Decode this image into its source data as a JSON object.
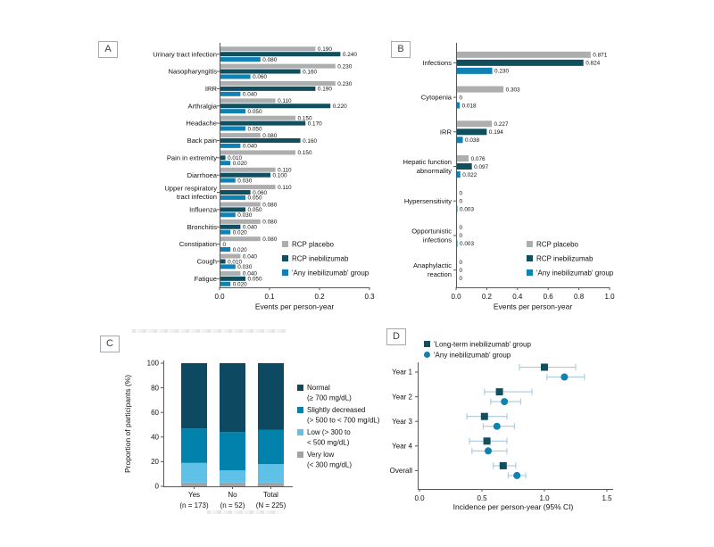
{
  "figure": {
    "panel_labels": [
      "A",
      "B",
      "C",
      "D"
    ],
    "background": "#ffffff",
    "axis_color": "#58595b"
  },
  "chart_data": [
    {
      "panel": "A",
      "type": "bar",
      "orientation": "horizontal",
      "xlabel": "Events per person-year",
      "xlim": [
        0,
        0.3
      ],
      "xticks": [
        0,
        0.1,
        0.2,
        0.3
      ],
      "value_label_format": "3 decimals, zero shown as 0",
      "legend_position": "lower-right",
      "categories": [
        "Urinary tract infection",
        "Nasopharyngitis",
        "IRR",
        "Arthralgia",
        "Headache",
        "Back pain",
        "Pain in extremity",
        "Diarrhoea",
        [
          "Upper respiratory",
          "tract infection"
        ],
        "Influenza",
        "Bronchitis",
        "Constipation",
        "Cough",
        "Fatigue"
      ],
      "series": [
        {
          "name": "RCP placebo",
          "color": "#adaeb0",
          "values": [
            0.19,
            0.23,
            0.23,
            0.11,
            0.15,
            0.08,
            0.15,
            0.11,
            0.11,
            0.08,
            0.08,
            0.08,
            0.04,
            0.04
          ]
        },
        {
          "name": "RCP inebilizumab",
          "color": "#114f5f",
          "values": [
            0.24,
            0.16,
            0.19,
            0.22,
            0.17,
            0.16,
            0.01,
            0.1,
            0.06,
            0.05,
            0.04,
            0,
            0.01,
            0.05
          ]
        },
        {
          "name": "'Any inebilizumab' group",
          "color": "#0f81b2",
          "values": [
            0.08,
            0.06,
            0.04,
            0.05,
            0.05,
            0.04,
            0.02,
            0.03,
            0.05,
            0.03,
            0.02,
            0.02,
            0.03,
            0.02
          ]
        }
      ]
    },
    {
      "panel": "B",
      "type": "bar",
      "orientation": "horizontal",
      "xlabel": "Events per person-year",
      "xlim": [
        0,
        1.0
      ],
      "xticks": [
        0,
        0.2,
        0.4,
        0.6,
        0.8,
        1.0
      ],
      "value_label_format": "3 decimals, zero shown as 0",
      "legend_position": "lower-right",
      "categories": [
        "Infections",
        "Cytopenia",
        "IRR",
        [
          "Hepatic function",
          "abnormality"
        ],
        "Hypersensitivity",
        [
          "Opportunistic",
          "infections"
        ],
        [
          "Anaphylactic",
          "reaction"
        ]
      ],
      "series": [
        {
          "name": "RCP placebo",
          "color": "#adaeb0",
          "values": [
            0.871,
            0.303,
            0.227,
            0.076,
            0,
            0,
            0
          ]
        },
        {
          "name": "RCP inebilizumab",
          "color": "#114f5f",
          "values": [
            0.824,
            0,
            0.194,
            0.097,
            0,
            0,
            0
          ]
        },
        {
          "name": "'Any inebilizumab' group",
          "color": "#0f81b2",
          "values": [
            0.23,
            0.018,
            0.038,
            0.022,
            0.003,
            0.003,
            0
          ]
        }
      ]
    },
    {
      "panel": "C",
      "type": "stacked_bar",
      "ylabel": "Proportion of participants (%)",
      "ylim": [
        0,
        100
      ],
      "yticks": [
        0,
        20,
        40,
        60,
        80,
        100
      ],
      "categories": [
        "Yes",
        "No",
        "Total"
      ],
      "category_sublabels": [
        "(n = 173)",
        "(n = 52)",
        "(N = 225)"
      ],
      "series": [
        {
          "name": "Very low (< 300 mg/dL)",
          "legend_lines": [
            "Very low",
            "(< 300 mg/dL)"
          ],
          "color": "#a3a3a3",
          "values": [
            3,
            3,
            3
          ]
        },
        {
          "name": "Low (> 300 to < 500 mg/dL)",
          "legend_lines": [
            "Low (> 300 to",
            "< 500 mg/dL)"
          ],
          "color": "#5fc1e8",
          "values": [
            16,
            10,
            15
          ]
        },
        {
          "name": "Slightly decreased (> 500 to < 700 mg/dL)",
          "legend_lines": [
            "Slightly decreased",
            "(> 500 to < 700 mg/dL)"
          ],
          "color": "#0082ad",
          "values": [
            28,
            31,
            28
          ]
        },
        {
          "name": "Normal (≥ 700 mg/dL)",
          "legend_lines": [
            "Normal",
            "(≥ 700 mg/dL)"
          ],
          "color": "#0d4a62",
          "values": [
            53,
            56,
            54
          ]
        }
      ],
      "legend_order": "top-to-bottom: Normal, Slightly decreased, Low, Very low"
    },
    {
      "panel": "D",
      "type": "forest",
      "xlabel": "Incidence per person-year (95% CI)",
      "xlim": [
        0,
        1.5
      ],
      "xticks": [
        0,
        0.5,
        1.0,
        1.5
      ],
      "ci_color": "#aac9dc",
      "categories": [
        "Year 1",
        "Year 2",
        "Year 3",
        "Year 4",
        "Overall"
      ],
      "series": [
        {
          "name": "'Long-term inebilizumab' group",
          "marker": "square",
          "color": "#114f5f",
          "points": [
            {
              "value": 1.0,
              "lo": 0.8,
              "hi": 1.25
            },
            {
              "value": 0.64,
              "lo": 0.52,
              "hi": 0.9
            },
            {
              "value": 0.52,
              "lo": 0.38,
              "hi": 0.7
            },
            {
              "value": 0.54,
              "lo": 0.4,
              "hi": 0.7
            },
            {
              "value": 0.67,
              "lo": 0.59,
              "hi": 0.77
            }
          ]
        },
        {
          "name": "'Any inebilizumab' group",
          "marker": "circle",
          "color": "#0f81b2",
          "points": [
            {
              "value": 1.16,
              "lo": 1.02,
              "hi": 1.32
            },
            {
              "value": 0.68,
              "lo": 0.57,
              "hi": 0.81
            },
            {
              "value": 0.62,
              "lo": 0.51,
              "hi": 0.76
            },
            {
              "value": 0.55,
              "lo": 0.42,
              "hi": 0.7
            },
            {
              "value": 0.78,
              "lo": 0.71,
              "hi": 0.85
            }
          ]
        }
      ]
    }
  ]
}
